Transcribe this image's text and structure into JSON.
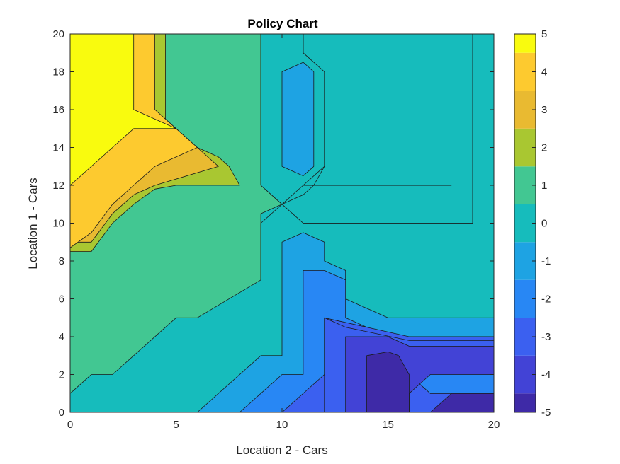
{
  "chart_data": {
    "type": "contourf",
    "title": "Policy Chart",
    "xlabel": "Location 2 - Cars",
    "ylabel": "Location 1 - Cars",
    "xlim": [
      0,
      20
    ],
    "ylim": [
      0,
      20
    ],
    "x_ticks": [
      0,
      5,
      10,
      15,
      20
    ],
    "y_ticks": [
      0,
      2,
      4,
      6,
      8,
      10,
      12,
      14,
      16,
      18,
      20
    ],
    "colorbar": {
      "range": [
        -5,
        5
      ],
      "ticks": [
        5,
        4,
        3,
        2,
        1,
        0,
        -1,
        -2,
        -3,
        -4,
        -5
      ]
    },
    "colormap": {
      "5": "#f9fb0e",
      "4": "#fdca2f",
      "3": "#e9ba31",
      "2": "#a9c731",
      "1": "#42c792",
      "0": "#16bcbc",
      "-1": "#1ea3e3",
      "-2": "#2887f4",
      "-3": "#3b60f0",
      "-4": "#4243d6",
      "-5": "#3e2aa7"
    },
    "regions": [
      {
        "level": 1,
        "points": [
          [
            0,
            0
          ],
          [
            20,
            0
          ],
          [
            20,
            20
          ],
          [
            0,
            20
          ]
        ]
      },
      {
        "level": 0,
        "points": [
          [
            0,
            0
          ],
          [
            6,
            0
          ],
          [
            9,
            3
          ],
          [
            10,
            3
          ],
          [
            10,
            8
          ],
          [
            11,
            8.5
          ],
          [
            12,
            8
          ],
          [
            12,
            7
          ],
          [
            13,
            6.5
          ],
          [
            13,
            5
          ],
          [
            15,
            4
          ],
          [
            17,
            3
          ],
          [
            20,
            3
          ],
          [
            20,
            5
          ],
          [
            19,
            5
          ],
          [
            16,
            5
          ],
          [
            13,
            5
          ],
          [
            12,
            5
          ],
          [
            11,
            5.5
          ],
          [
            9,
            7
          ],
          [
            9,
            10.5
          ],
          [
            10,
            11
          ],
          [
            11,
            11.5
          ],
          [
            11.5,
            12
          ],
          [
            12,
            13
          ],
          [
            12,
            18
          ],
          [
            11,
            19
          ],
          [
            11,
            20
          ],
          [
            19,
            20
          ],
          [
            19,
            10
          ],
          [
            11,
            10
          ],
          [
            10,
            11
          ],
          [
            9,
            12
          ],
          [
            9,
            20
          ],
          [
            20,
            20
          ],
          [
            20,
            0
          ]
        ]
      },
      {
        "level": 0,
        "points": [
          [
            0,
            0
          ],
          [
            0,
            1
          ],
          [
            1,
            2
          ],
          [
            2,
            2
          ],
          [
            5,
            5
          ],
          [
            6,
            5
          ],
          [
            9,
            7
          ],
          [
            9,
            10
          ],
          [
            10,
            11
          ],
          [
            11,
            10
          ],
          [
            19,
            10
          ],
          [
            19,
            20
          ],
          [
            20,
            20
          ],
          [
            20,
            0
          ]
        ]
      },
      {
        "level": 0,
        "points": [
          [
            9,
            12
          ],
          [
            9,
            20
          ],
          [
            11,
            20
          ],
          [
            11,
            19
          ],
          [
            12,
            18
          ],
          [
            12,
            13
          ],
          [
            11,
            12
          ],
          [
            10,
            11
          ]
        ]
      },
      {
        "level": -1,
        "points": [
          [
            6,
            0
          ],
          [
            9,
            3
          ],
          [
            10,
            3
          ],
          [
            10,
            9
          ],
          [
            11,
            9.5
          ],
          [
            12,
            9
          ],
          [
            12,
            8
          ],
          [
            13,
            7.5
          ],
          [
            13,
            6
          ],
          [
            15,
            5
          ],
          [
            20,
            5
          ],
          [
            20,
            0
          ]
        ]
      },
      {
        "level": -1,
        "points": [
          [
            10,
            13
          ],
          [
            10,
            18
          ],
          [
            11,
            18.5
          ],
          [
            11.5,
            18
          ],
          [
            11.5,
            13
          ],
          [
            11,
            12.5
          ]
        ]
      },
      {
        "level": -2,
        "points": [
          [
            8,
            0
          ],
          [
            10,
            2
          ],
          [
            11,
            2
          ],
          [
            11,
            7.5
          ],
          [
            12,
            7.5
          ],
          [
            13,
            7
          ],
          [
            13,
            5
          ],
          [
            15,
            4
          ],
          [
            20,
            4
          ],
          [
            20,
            0
          ]
        ]
      },
      {
        "level": -3,
        "points": [
          [
            10,
            0
          ],
          [
            12,
            2
          ],
          [
            12,
            5
          ],
          [
            14,
            4.5
          ],
          [
            16,
            4
          ],
          [
            20,
            4
          ],
          [
            20,
            3
          ],
          [
            17,
            3
          ],
          [
            16,
            2
          ],
          [
            16,
            1
          ],
          [
            17,
            0
          ]
        ]
      },
      {
        "level": -3,
        "points": [
          [
            12,
            0
          ],
          [
            12,
            5
          ],
          [
            13,
            4.5
          ],
          [
            16,
            3.8
          ],
          [
            20,
            3.8
          ],
          [
            20,
            3
          ],
          [
            17,
            3
          ],
          [
            16.5,
            1.5
          ],
          [
            17,
            1
          ],
          [
            20,
            1
          ],
          [
            20,
            0
          ]
        ]
      },
      {
        "level": -4,
        "points": [
          [
            13,
            0
          ],
          [
            13,
            4
          ],
          [
            15,
            4
          ],
          [
            16,
            3.5
          ],
          [
            20,
            3.5
          ],
          [
            20,
            2
          ],
          [
            17,
            2
          ],
          [
            16,
            1
          ],
          [
            16,
            0
          ]
        ]
      },
      {
        "level": -5,
        "points": [
          [
            14,
            0
          ],
          [
            14,
            3
          ],
          [
            15,
            3.2
          ],
          [
            15.5,
            3
          ],
          [
            16,
            2
          ],
          [
            16,
            0
          ]
        ]
      },
      {
        "level": -5,
        "points": [
          [
            17,
            0
          ],
          [
            18,
            1
          ],
          [
            20,
            1
          ],
          [
            20,
            0
          ]
        ]
      },
      {
        "level": 2,
        "points": [
          [
            0,
            8.5
          ],
          [
            1,
            8.5
          ],
          [
            2,
            10
          ],
          [
            3,
            11
          ],
          [
            4,
            11.8
          ],
          [
            5,
            12
          ],
          [
            8,
            12
          ],
          [
            7.5,
            13
          ],
          [
            7,
            13.5
          ],
          [
            6,
            14
          ],
          [
            5,
            15
          ],
          [
            4.5,
            15.5
          ],
          [
            4.5,
            20
          ],
          [
            0,
            20
          ]
        ]
      },
      {
        "level": 3,
        "points": [
          [
            0,
            9
          ],
          [
            1,
            9
          ],
          [
            2,
            10.5
          ],
          [
            3,
            11.5
          ],
          [
            4,
            12
          ],
          [
            7,
            13
          ],
          [
            6,
            14
          ],
          [
            5,
            15
          ],
          [
            4,
            16
          ],
          [
            4,
            20
          ],
          [
            0,
            20
          ]
        ]
      },
      {
        "level": 4,
        "points": [
          [
            0,
            8.7
          ],
          [
            1,
            9.5
          ],
          [
            2,
            11
          ],
          [
            3,
            12
          ],
          [
            4,
            13
          ],
          [
            6,
            14
          ],
          [
            5,
            15
          ],
          [
            4,
            16
          ],
          [
            4,
            20
          ],
          [
            0,
            20
          ]
        ]
      },
      {
        "level": 5,
        "points": [
          [
            0,
            12
          ],
          [
            1,
            13
          ],
          [
            2,
            14
          ],
          [
            3,
            15
          ],
          [
            5,
            15
          ],
          [
            3,
            16
          ],
          [
            3,
            20
          ],
          [
            0,
            20
          ]
        ]
      }
    ],
    "lines": [
      {
        "points": [
          [
            11,
            12
          ],
          [
            18,
            12
          ]
        ]
      }
    ]
  }
}
